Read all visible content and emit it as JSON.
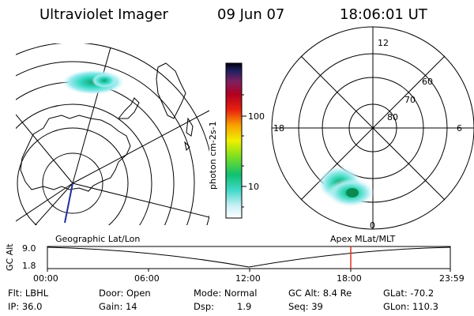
{
  "header": {
    "title": "Ultraviolet Imager",
    "date": "09 Jun 07",
    "time": "18:06:01 UT"
  },
  "colorbar": {
    "unit_label": "photon cm-2s-1",
    "ticks": [
      "100",
      "10"
    ]
  },
  "polar_plot": {
    "mlt_labels": [
      "12",
      "18",
      "6",
      "0"
    ],
    "mlat_labels": [
      "60",
      "70",
      "80"
    ]
  },
  "timeline": {
    "left_title": "Geographic Lat/Lon",
    "right_title": "Apex MLat/MLT",
    "ylabel": "GC Alt",
    "yticks": [
      "9.0",
      "1.8"
    ],
    "xticks": [
      "00:00",
      "06:00",
      "12:00",
      "18:00",
      "23:59"
    ]
  },
  "info": {
    "flt": "Flt: LBHL",
    "ip": "IP: 36.0",
    "door": "Door: Open",
    "gain": "Gain: 14",
    "mode": "Mode: Normal",
    "dsp": "Dsp:",
    "dsp_val": "1.9",
    "gc_alt": "GC Alt: 8.4 Re",
    "seq": "Seq: 39",
    "glat": "GLat: -70.2",
    "glon": "GLon: 110.3"
  },
  "colors": {
    "marker": "#e03020",
    "track": "#2030a0"
  }
}
